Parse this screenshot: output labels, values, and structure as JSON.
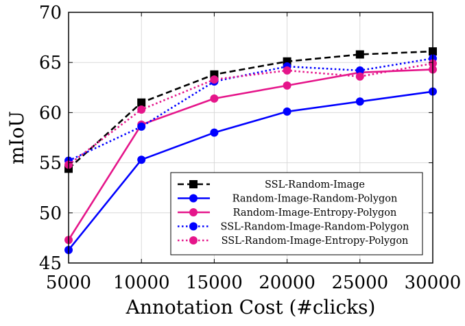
{
  "chart_data": {
    "type": "line",
    "title": "",
    "xlabel": "Annotation Cost (#clicks)",
    "ylabel": "mIoU",
    "x": [
      5000,
      10000,
      15000,
      20000,
      25000,
      30000
    ],
    "xlim": [
      5000,
      30000
    ],
    "ylim": [
      45,
      70
    ],
    "xticks": [
      "5000",
      "10000",
      "15000",
      "20000",
      "25000",
      "30000"
    ],
    "yticks": [
      "45",
      "50",
      "55",
      "60",
      "65",
      "70"
    ],
    "grid": true,
    "legend_position": "bottom-right",
    "series": [
      {
        "name": "SSL-Random-Image",
        "values": [
          54.4,
          61.0,
          63.8,
          65.1,
          65.8,
          66.1
        ],
        "color": "#000000",
        "dash": "dashed",
        "marker": "square"
      },
      {
        "name": "Random-Image-Random-Polygon",
        "values": [
          46.3,
          55.3,
          58.0,
          60.1,
          61.1,
          62.1
        ],
        "color": "#0000ff",
        "dash": "solid",
        "marker": "circle"
      },
      {
        "name": "Random-Image-Entropy-Polygon",
        "values": [
          47.3,
          58.8,
          61.4,
          62.7,
          64.0,
          64.3
        ],
        "color": "#e5158a",
        "dash": "solid",
        "marker": "circle"
      },
      {
        "name": "SSL-Random-Image-Random-Polygon",
        "values": [
          55.2,
          58.6,
          63.1,
          64.6,
          64.2,
          65.4
        ],
        "color": "#0000ff",
        "dash": "dotted",
        "marker": "circle"
      },
      {
        "name": "SSL-Random-Image-Entropy-Polygon",
        "values": [
          54.8,
          60.3,
          63.3,
          64.2,
          63.6,
          64.9
        ],
        "color": "#e5158a",
        "dash": "dotted",
        "marker": "circle"
      }
    ]
  }
}
